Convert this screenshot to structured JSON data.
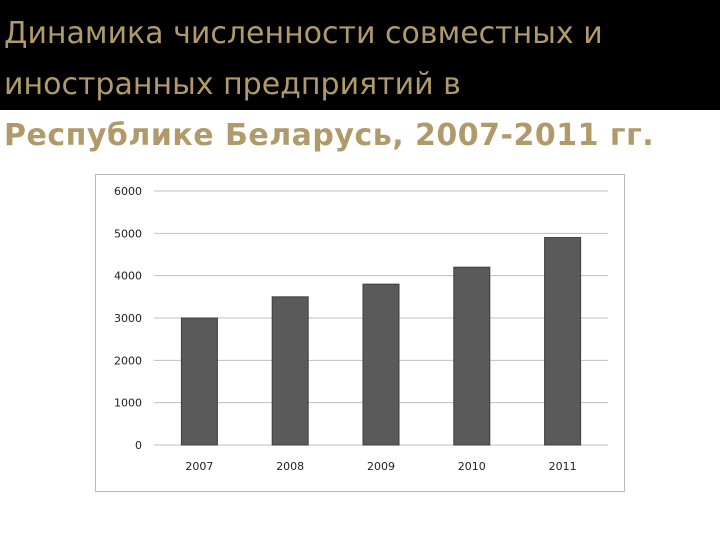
{
  "title": {
    "lines": [
      "Динамика численности совместных и",
      "иностранных предприятий в",
      "Республике Беларусь, 2007-2011 гг."
    ]
  },
  "colors": {
    "title_text": "#b09a6a",
    "title_band": "#000000",
    "bar_fill": "#5a5a5a",
    "gridline": "#bfbfbf"
  },
  "chart_data": {
    "type": "bar",
    "title": "",
    "xlabel": "",
    "ylabel": "",
    "categories": [
      "2007",
      "2008",
      "2009",
      "2010",
      "2011"
    ],
    "values": [
      3000,
      3500,
      3800,
      4200,
      4900
    ],
    "ylim": [
      0,
      6000
    ],
    "yticks": [
      "0",
      "1000",
      "2000",
      "3000",
      "4000",
      "5000",
      "6000"
    ],
    "grid": true,
    "legend": "none"
  }
}
